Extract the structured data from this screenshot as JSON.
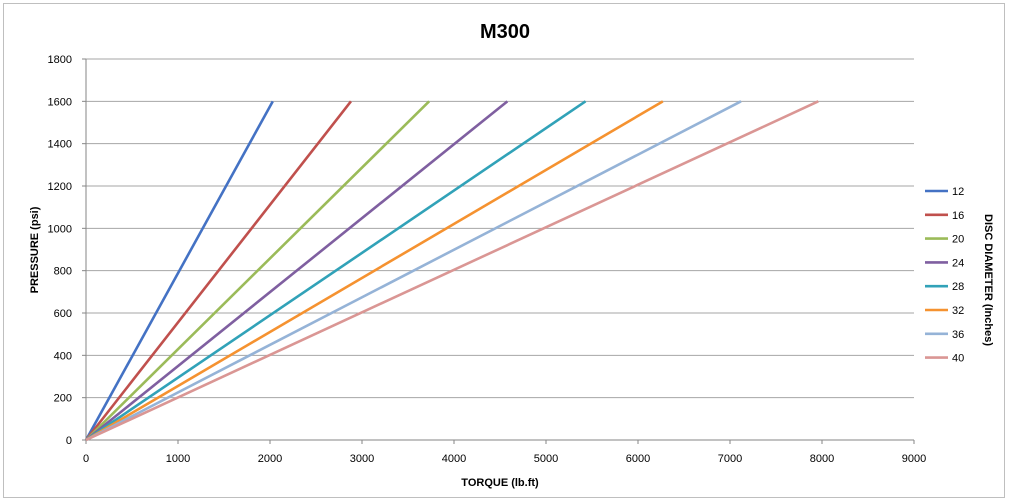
{
  "chart_data": {
    "type": "line",
    "title": "M300",
    "xlabel": "TORQUE (lb.ft)",
    "ylabel": "PRESSURE (psi)",
    "legend_title": "DISC DIAMETER (Inches)",
    "legend_position": "right",
    "xlim": [
      0,
      9000
    ],
    "ylim": [
      0,
      1800
    ],
    "x_ticks": [
      "0",
      "1000",
      "2000",
      "3000",
      "4000",
      "5000",
      "6000",
      "7000",
      "8000",
      "9000"
    ],
    "y_ticks": [
      "0",
      "200",
      "400",
      "600",
      "800",
      "1000",
      "1200",
      "1400",
      "1600",
      "1800"
    ],
    "grid": "horizontal",
    "series": [
      {
        "name": "12",
        "color": "#4472C4",
        "x": [
          0,
          2030
        ],
        "y": [
          0,
          1600
        ]
      },
      {
        "name": "16",
        "color": "#C0504D",
        "x": [
          0,
          2880
        ],
        "y": [
          0,
          1600
        ]
      },
      {
        "name": "20",
        "color": "#9BBB59",
        "x": [
          0,
          3730
        ],
        "y": [
          0,
          1600
        ]
      },
      {
        "name": "24",
        "color": "#7F5FA0",
        "x": [
          0,
          4580
        ],
        "y": [
          0,
          1600
        ]
      },
      {
        "name": "28",
        "color": "#31A2B8",
        "x": [
          0,
          5430
        ],
        "y": [
          0,
          1600
        ]
      },
      {
        "name": "32",
        "color": "#F59230",
        "x": [
          0,
          6270
        ],
        "y": [
          0,
          1600
        ]
      },
      {
        "name": "36",
        "color": "#95B3D7",
        "x": [
          0,
          7120
        ],
        "y": [
          0,
          1600
        ]
      },
      {
        "name": "40",
        "color": "#DA9694",
        "x": [
          0,
          7960
        ],
        "y": [
          0,
          1600
        ]
      }
    ]
  }
}
